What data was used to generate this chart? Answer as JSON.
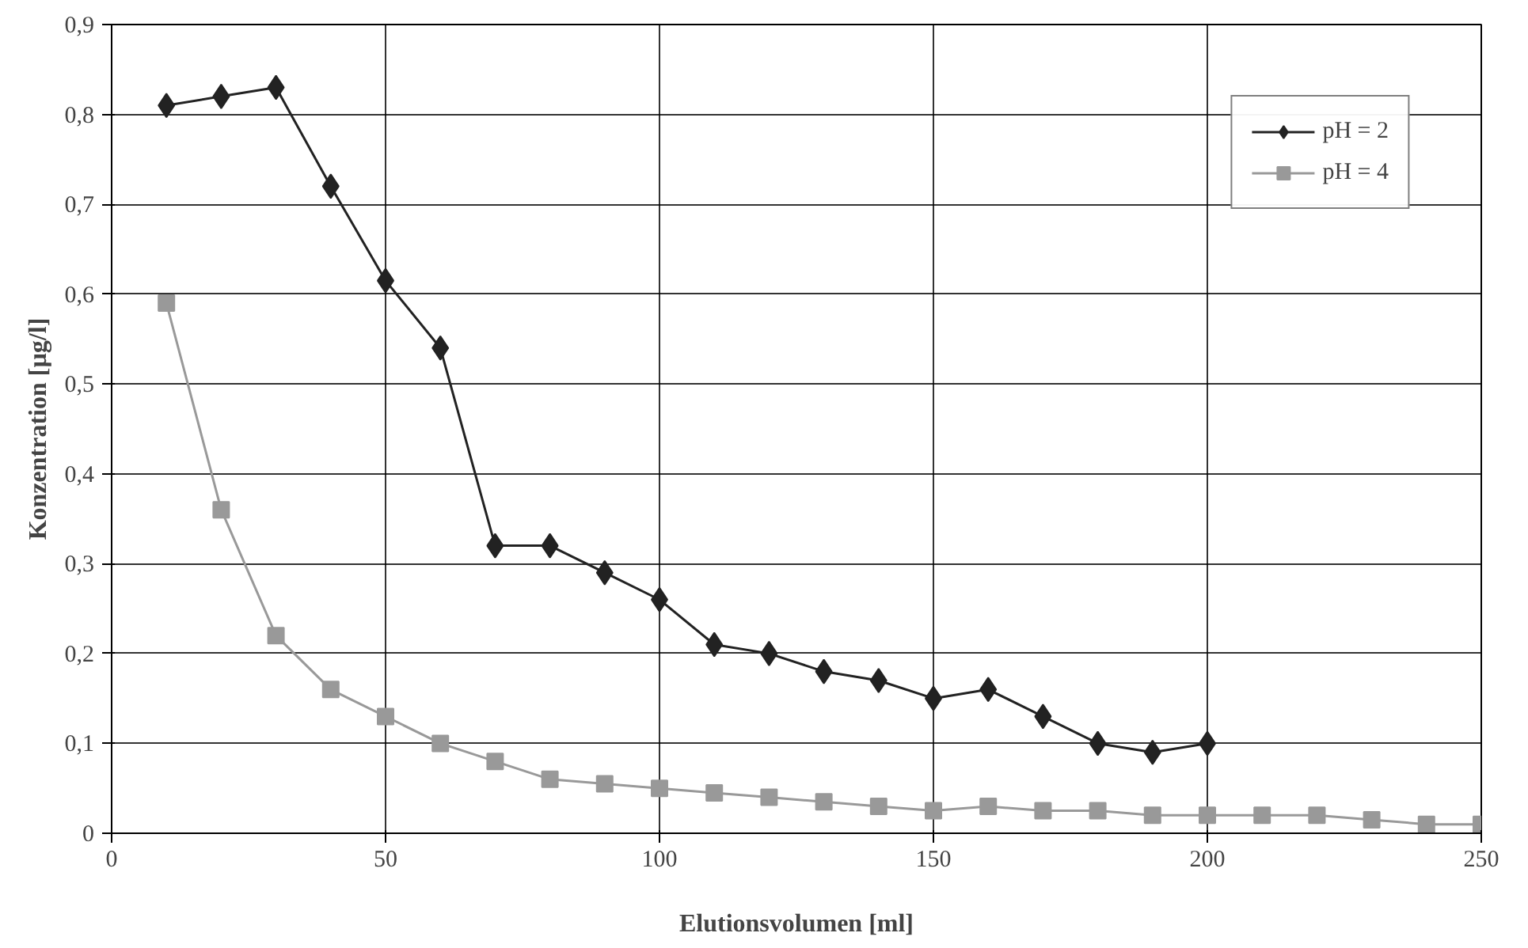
{
  "chart_data": {
    "type": "line",
    "xlabel": "Elutionsvolumen [ml]",
    "ylabel": "Konzentration [µg/l]",
    "xlim": [
      0,
      250
    ],
    "xticks": [
      0,
      50,
      100,
      150,
      200,
      250
    ],
    "ylim": [
      0,
      0.9
    ],
    "yticks": [
      {
        "value": 0,
        "label": "0"
      },
      {
        "value": 0.1,
        "label": "0,1"
      },
      {
        "value": 0.2,
        "label": "0,2"
      },
      {
        "value": 0.3,
        "label": "0,3"
      },
      {
        "value": 0.4,
        "label": "0,4"
      },
      {
        "value": 0.5,
        "label": "0,5"
      },
      {
        "value": 0.6,
        "label": "0,6"
      },
      {
        "value": 0.7,
        "label": "0,7"
      },
      {
        "value": 0.8,
        "label": "0,8"
      },
      {
        "value": 0.9,
        "label": "0,9"
      }
    ],
    "grid": true,
    "legend": "top right",
    "line_style": "solid",
    "series": [
      {
        "name": "pH = 2",
        "color": "#222222",
        "marker": "diamond",
        "x": [
          10,
          20,
          30,
          40,
          50,
          60,
          70,
          80,
          90,
          100,
          110,
          120,
          130,
          140,
          150,
          160,
          170,
          180,
          190,
          200
        ],
        "values": [
          0.81,
          0.82,
          0.83,
          0.72,
          0.615,
          0.54,
          0.32,
          0.32,
          0.29,
          0.26,
          0.21,
          0.2,
          0.18,
          0.17,
          0.15,
          0.16,
          0.13,
          0.1,
          0.09,
          0.1
        ]
      },
      {
        "name": "pH = 4",
        "color": "#999999",
        "marker": "square",
        "x": [
          10,
          20,
          30,
          40,
          50,
          60,
          70,
          80,
          90,
          100,
          110,
          120,
          130,
          140,
          150,
          160,
          170,
          180,
          190,
          200,
          210,
          220,
          230,
          240,
          250
        ],
        "values": [
          0.59,
          0.36,
          0.22,
          0.16,
          0.13,
          0.1,
          0.08,
          0.06,
          0.055,
          0.05,
          0.045,
          0.04,
          0.035,
          0.03,
          0.025,
          0.03,
          0.025,
          0.025,
          0.02,
          0.02,
          0.02,
          0.02,
          0.015,
          0.01,
          0.01
        ]
      }
    ]
  }
}
